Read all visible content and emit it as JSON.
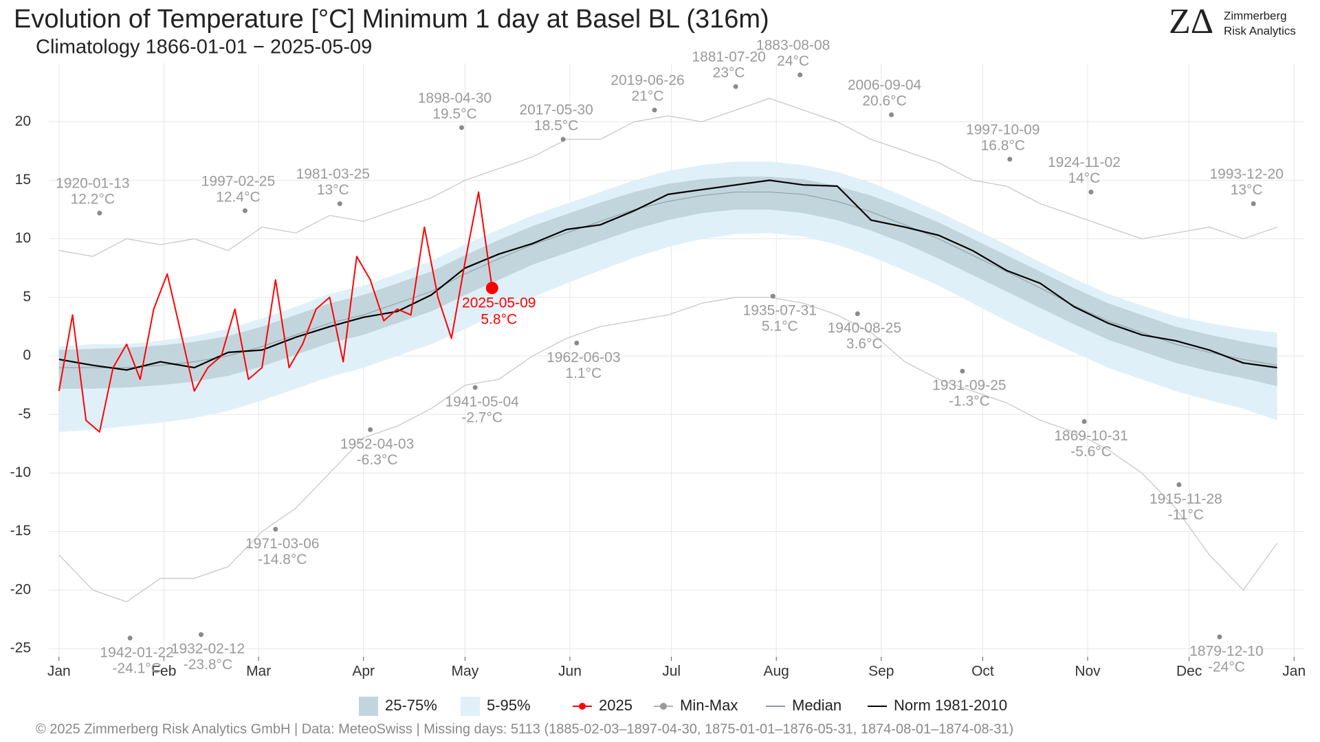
{
  "chart_data": {
    "type": "climatology",
    "title": "Evolution of Temperature [°C] Minimum 1 day at Basel  BL (316m)",
    "subtitle": "Climatology 1866-01-01 − 2025-05-09",
    "logo": {
      "mark": "ZΔ",
      "line1": "Zimmerberg",
      "line2": "Risk Analytics"
    },
    "footer": "©  2025 Zimmerberg Risk Analytics GmbH | Data: MeteoSwiss | Missing days: 5113 (1885-02-03–1897-04-30, 1875-01-01–1876-05-31, 1874-08-01–1874-08-31)",
    "xlim": [
      -2,
      369
    ],
    "ylim": [
      -25.7,
      25
    ],
    "xticks": [
      {
        "value": 1,
        "label": "Jan"
      },
      {
        "value": 32,
        "label": "Feb"
      },
      {
        "value": 60,
        "label": "Mar"
      },
      {
        "value": 91,
        "label": "Apr"
      },
      {
        "value": 121,
        "label": "May"
      },
      {
        "value": 152,
        "label": "Jun"
      },
      {
        "value": 182,
        "label": "Jul"
      },
      {
        "value": 213,
        "label": "Aug"
      },
      {
        "value": 244,
        "label": "Sep"
      },
      {
        "value": 274,
        "label": "Oct"
      },
      {
        "value": 305,
        "label": "Nov"
      },
      {
        "value": 335,
        "label": "Dec"
      },
      {
        "value": 366,
        "label": "Jan"
      }
    ],
    "yticks": [
      -25,
      -20,
      -15,
      -10,
      -5,
      0,
      5,
      10,
      15,
      20
    ],
    "grid": true,
    "x": [
      1,
      11,
      21,
      31,
      41,
      51,
      61,
      71,
      81,
      91,
      101,
      111,
      121,
      131,
      141,
      151,
      161,
      171,
      181,
      191,
      201,
      211,
      221,
      231,
      241,
      251,
      261,
      271,
      281,
      291,
      301,
      311,
      321,
      331,
      341,
      351,
      361
    ],
    "bands": [
      {
        "name": "5-95%",
        "color": "#dff0f8",
        "low": [
          -6.5,
          -6.3,
          -6,
          -5.7,
          -5.3,
          -4.7,
          -3.8,
          -2.8,
          -1.8,
          -1,
          0,
          1,
          2.3,
          3.7,
          5,
          6.2,
          7.3,
          8.4,
          9.3,
          10,
          10.4,
          10.5,
          10.2,
          9.5,
          8.5,
          7.3,
          6,
          4.5,
          3,
          1.6,
          0.3,
          -1,
          -2,
          -3,
          -3.8,
          -4.5,
          -5.5
        ],
        "high": [
          0.8,
          1,
          1,
          1.3,
          1.7,
          2.3,
          3.2,
          4.2,
          5.3,
          6,
          7,
          8.1,
          9.5,
          10.8,
          12,
          13,
          14,
          15,
          15.8,
          16.3,
          16.6,
          16.6,
          16.3,
          15.7,
          14.8,
          13.6,
          12.3,
          10.9,
          9.5,
          8,
          6.6,
          5.3,
          4.3,
          3.4,
          2.8,
          2.3,
          2
        ]
      },
      {
        "name": "25-75%",
        "color": "#c2d5dc",
        "low": [
          -2.8,
          -2.8,
          -2.7,
          -2.5,
          -2.2,
          -1.7,
          -0.9,
          0.1,
          1.1,
          1.8,
          2.8,
          3.8,
          5.2,
          6.5,
          7.8,
          8.8,
          9.8,
          10.8,
          11.6,
          12.2,
          12.5,
          12.5,
          12.2,
          11.6,
          10.7,
          9.6,
          8.3,
          6.9,
          5.5,
          4.1,
          2.7,
          1.4,
          0.4,
          -0.6,
          -1.3,
          -1.9,
          -2.6
        ],
        "high": [
          0.5,
          0.6,
          0.7,
          0.9,
          1.2,
          1.7,
          2.5,
          3.5,
          4.5,
          5.2,
          6.2,
          7.2,
          8.6,
          9.9,
          11.1,
          12.1,
          13.1,
          14,
          14.7,
          15.1,
          15.3,
          15.3,
          15.1,
          14.5,
          13.7,
          12.6,
          11.4,
          10,
          8.6,
          7.2,
          5.8,
          4.5,
          3.5,
          2.5,
          1.8,
          1.2,
          0.7
        ]
      }
    ],
    "minmax": {
      "name": "Min-Max",
      "color": "#c8c8c8",
      "max": [
        9,
        8.5,
        10,
        9.5,
        10,
        9,
        11,
        10.5,
        12,
        11.5,
        12.5,
        13.5,
        15,
        16,
        17,
        18.5,
        18.5,
        20,
        20.5,
        20,
        21,
        22,
        21,
        20,
        18.5,
        17.5,
        16.5,
        15,
        14.5,
        13,
        12,
        11,
        10,
        10.5,
        11,
        10,
        11
      ],
      "min": [
        -17,
        -20,
        -21,
        -19,
        -19,
        -18,
        -15,
        -13,
        -10,
        -7,
        -6,
        -4.5,
        -2.5,
        -2,
        0,
        1.5,
        2.5,
        3,
        3.5,
        4.5,
        5,
        5,
        4.5,
        3.5,
        2,
        -0.5,
        -2,
        -3,
        -4,
        -5.5,
        -6.5,
        -8,
        -10,
        -13,
        -17,
        -20,
        -16
      ]
    },
    "series": [
      {
        "name": "Median",
        "color": "#8c9aa0",
        "width": 1,
        "values": [
          -1,
          -1,
          -1,
          -0.8,
          -0.5,
          0,
          0.8,
          1.8,
          2.8,
          3.5,
          4.5,
          5.5,
          7,
          8.3,
          9.5,
          10.5,
          11.5,
          12.5,
          13.2,
          13.7,
          14,
          14,
          13.8,
          13.2,
          12.3,
          11.2,
          10,
          8.6,
          7.2,
          5.8,
          4.3,
          3,
          2,
          1,
          0.3,
          -0.3,
          -0.8
        ]
      },
      {
        "name": "Norm 1981-2010",
        "color": "#000000",
        "width": 2.2,
        "values": [
          -0.3,
          -0.8,
          -1.2,
          -0.5,
          -1,
          0.3,
          0.5,
          1.6,
          2.5,
          3.3,
          3.8,
          5.2,
          7.5,
          8.7,
          9.6,
          10.8,
          11.2,
          12.4,
          13.8,
          14.2,
          14.6,
          15,
          14.6,
          14.5,
          11.6,
          11,
          10.3,
          9,
          7.3,
          6.2,
          4.2,
          2.8,
          1.8,
          1.3,
          0.5,
          -0.6,
          -1
        ]
      },
      {
        "name": "2025",
        "color": "#ff0000",
        "width": 2,
        "x": [
          1,
          5,
          9,
          13,
          17,
          21,
          25,
          29,
          33,
          37,
          41,
          45,
          49,
          53,
          57,
          61,
          65,
          69,
          73,
          77,
          81,
          85,
          89,
          93,
          97,
          101,
          105,
          109,
          113,
          117,
          121,
          125,
          129
        ],
        "values": [
          -3,
          3.5,
          -5.5,
          -6.5,
          -1,
          1,
          -2,
          4,
          7,
          2,
          -3,
          -1,
          0,
          4,
          -2,
          -1,
          6.5,
          -1,
          1,
          4,
          5,
          -0.5,
          8.5,
          6.5,
          3,
          4,
          3.5,
          11,
          5,
          1.5,
          8,
          14,
          5.8
        ]
      }
    ],
    "highlight": {
      "date": "2025-05-09",
      "label": "5.8°C"
    },
    "annotations": [
      {
        "x": 13,
        "y": 12.2,
        "date": "1920-01-13",
        "label": "12.2°C"
      },
      {
        "x": 22,
        "y": -24.1,
        "date": "1942-01-22",
        "label": "-24.1°C"
      },
      {
        "x": 43,
        "y": -23.8,
        "date": "1932-02-12",
        "label": "-23.8°C"
      },
      {
        "x": 56,
        "y": 12.4,
        "date": "1997-02-25",
        "label": "12.4°C"
      },
      {
        "x": 65,
        "y": -14.8,
        "date": "1971-03-06",
        "label": "-14.8°C"
      },
      {
        "x": 84,
        "y": 13,
        "date": "1981-03-25",
        "label": "13°C"
      },
      {
        "x": 93,
        "y": -6.3,
        "date": "1952-04-03",
        "label": "-6.3°C"
      },
      {
        "x": 120,
        "y": 19.5,
        "date": "1898-04-30",
        "label": "19.5°C"
      },
      {
        "x": 124,
        "y": -2.7,
        "date": "1941-05-04",
        "label": "-2.7°C"
      },
      {
        "x": 150,
        "y": 18.5,
        "date": "2017-05-30",
        "label": "18.5°C"
      },
      {
        "x": 154,
        "y": 1.1,
        "date": "1962-06-03",
        "label": "1.1°C"
      },
      {
        "x": 177,
        "y": 21,
        "date": "2019-06-26",
        "label": "21°C"
      },
      {
        "x": 201,
        "y": 23,
        "date": "1881-07-20",
        "label": "23°C"
      },
      {
        "x": 220,
        "y": 24,
        "date": "1883-08-08",
        "label": "24°C"
      },
      {
        "x": 212,
        "y": 5.1,
        "date": "1935-07-31",
        "label": "5.1°C"
      },
      {
        "x": 237,
        "y": 3.6,
        "date": "1940-08-25",
        "label": "3.6°C"
      },
      {
        "x": 247,
        "y": 20.6,
        "date": "2006-09-04",
        "label": "20.6°C"
      },
      {
        "x": 268,
        "y": -1.3,
        "date": "1931-09-25",
        "label": "-1.3°C"
      },
      {
        "x": 282,
        "y": 16.8,
        "date": "1997-10-09",
        "label": "16.8°C"
      },
      {
        "x": 304,
        "y": -5.6,
        "date": "1869-10-31",
        "label": "-5.6°C"
      },
      {
        "x": 306,
        "y": 14,
        "date": "1924-11-02",
        "label": "14°C"
      },
      {
        "x": 332,
        "y": -11,
        "date": "1915-11-28",
        "label": "-11°C"
      },
      {
        "x": 344,
        "y": -24,
        "date": "1879-12-10",
        "label": "-24°C"
      },
      {
        "x": 354,
        "y": 13,
        "date": "1993-12-20",
        "label": "13°C"
      }
    ]
  }
}
